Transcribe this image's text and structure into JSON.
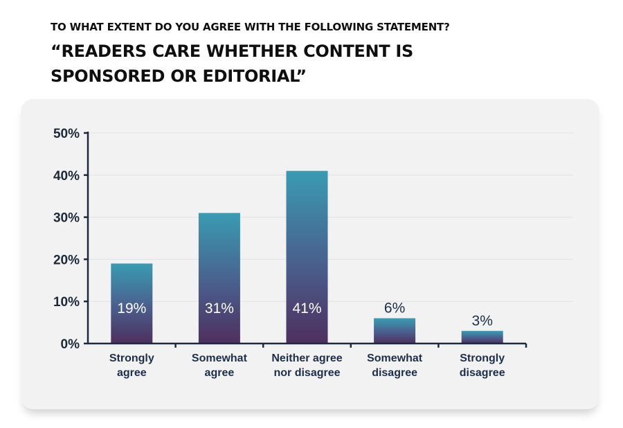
{
  "chart_data": {
    "type": "bar",
    "subtitle": "To what extent do you agree with the following statement?",
    "title": "“Readers care whether content is sponsored or editorial”",
    "categories": [
      [
        "Strongly",
        "agree"
      ],
      [
        "Somewhat",
        "agree"
      ],
      [
        "Neither agree",
        "nor disagree"
      ],
      [
        "Somewhat",
        "disagree"
      ],
      [
        "Strongly",
        "disagree"
      ]
    ],
    "values": [
      19,
      31,
      41,
      6,
      3
    ],
    "value_labels": [
      "19%",
      "31%",
      "41%",
      "6%",
      "3%"
    ],
    "yticks": [
      "0%",
      "10%",
      "20%",
      "30%",
      "40%",
      "50%"
    ],
    "ytick_values": [
      0,
      10,
      20,
      30,
      40,
      50
    ],
    "ylim": [
      0,
      50
    ],
    "xlabel": "",
    "ylabel": "",
    "grid": true,
    "legend": "none",
    "colors": {
      "bar_top": "#3a9bb2",
      "bar_mid": "#4a5e8c",
      "bar_bottom": "#4e2f5e",
      "axis": "#1b2a3e",
      "gridline": "#e1e2e6",
      "label_inside": "#ffffff",
      "label_outside": "#1c2e4a"
    }
  }
}
